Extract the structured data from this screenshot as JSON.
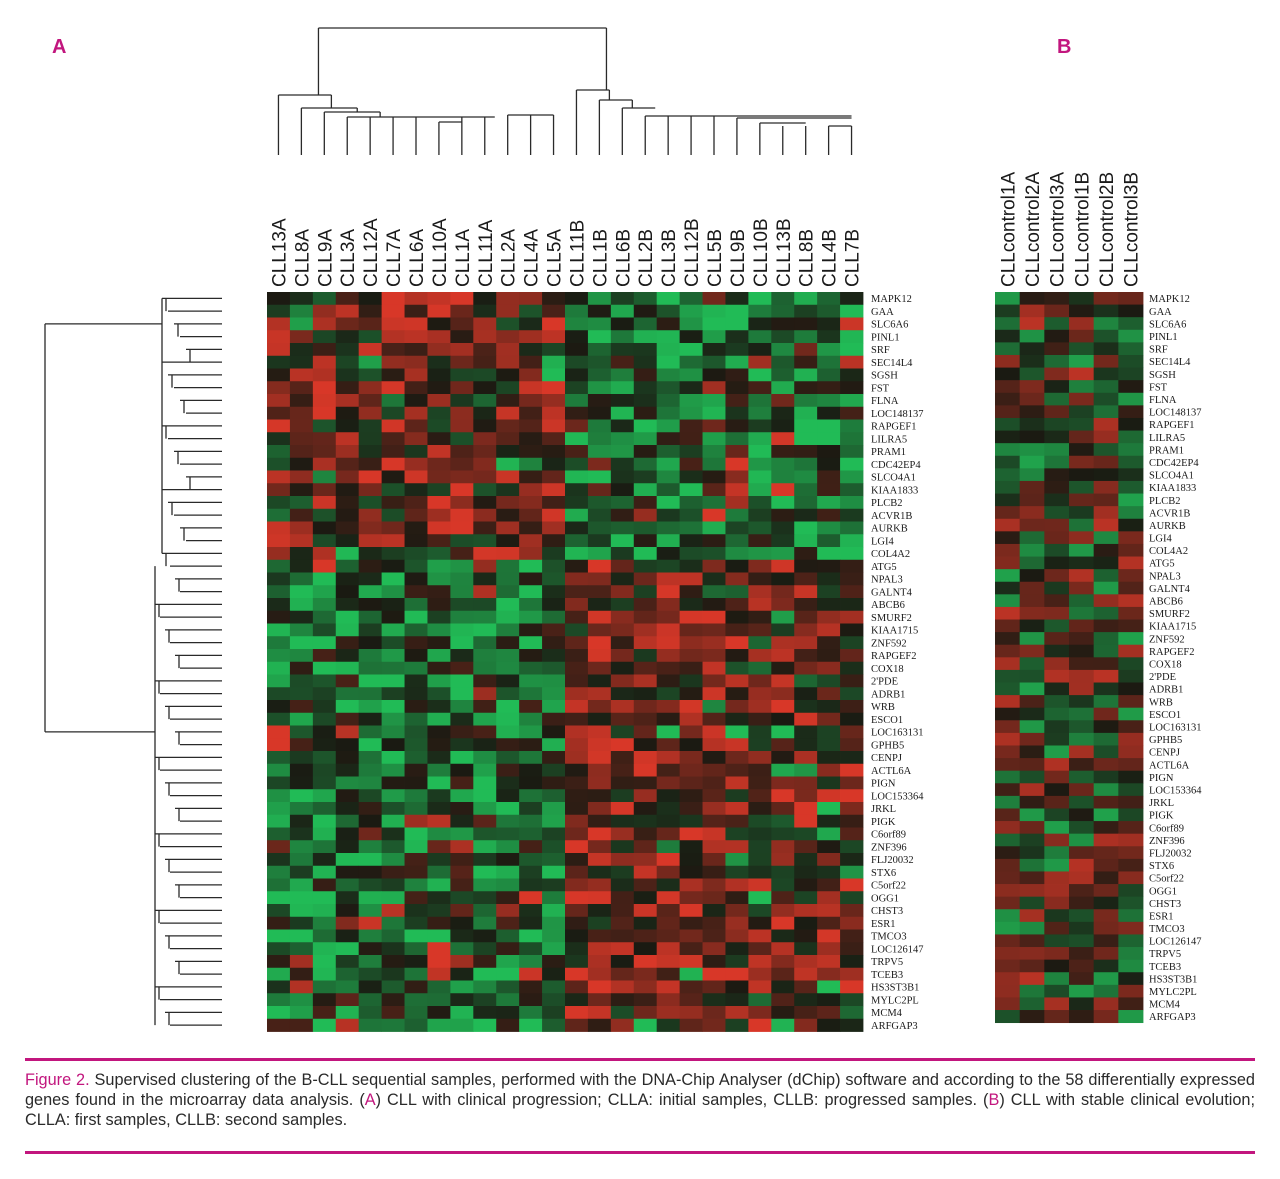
{
  "panels": {
    "a_label": "A",
    "b_label": "B"
  },
  "caption": {
    "figure_label": "Figure 2.",
    "part1": " Supervised clustering of the B-CLL sequential samples, performed with the DNA-Chip Analyser (dChip) software and according to the 58 differentially expressed genes found in the microarray data analysis. (",
    "a": "A",
    "part2": ") CLL with clinical progression; CLLA: initial samples, CLLB: progressed samples. (",
    "b": "B",
    "part3": ") CLL with stable clinical evolution; CLLA: first samples, CLLB: second samples."
  },
  "colors": {
    "accent": "#c2167e",
    "high": "#e83a2a",
    "low": "#22c95c",
    "mid": "#1a1a12"
  },
  "chart_data": [
    {
      "type": "heatmap",
      "panel": "A",
      "columns": [
        "CLL13A",
        "CLL8A",
        "CLL9A",
        "CLL3A",
        "CLL12A",
        "CLL7A",
        "CLL6A",
        "CLL10A",
        "CLL1A",
        "CLL11A",
        "CLL2A",
        "CLL4A",
        "CLL5A",
        "CLL11B",
        "CLL1B",
        "CLL6B",
        "CLL2B",
        "CLL3B",
        "CLL12B",
        "CLL5B",
        "CLL9B",
        "CLL10B",
        "CLL13B",
        "CLL8B",
        "CLL4B",
        "CLL7B"
      ],
      "rows": [
        "MAPK12",
        "GAA",
        "SLC6A6",
        "PINL1",
        "SRF",
        "SEC14L4",
        "SGSH",
        "FST",
        "FLNA",
        "LOC148137",
        "RAPGEF1",
        "LILRA5",
        "PRAM1",
        "CDC42EP4",
        "SLCO4A1",
        "KIAA1833",
        "PLCB2",
        "ACVR1B",
        "AURKB",
        "LGI4",
        "COL4A2",
        "ATG5",
        "NPAL3",
        "GALNT4",
        "ABCB6",
        "SMURF2",
        "KIAA1715",
        "ZNF592",
        "RAPGEF2",
        "COX18",
        "2'PDE",
        "ADRB1",
        "WRB",
        "ESCO1",
        "LOC163131",
        "GPHB5",
        "CENPJ",
        "ACTL6A",
        "PIGN",
        "LOC153364",
        "JRKL",
        "PIGK",
        "C6orf89",
        "ZNF396",
        "FLJ20032",
        "STX6",
        "C5orf22",
        "OGG1",
        "CHST3",
        "ESR1",
        "TMCO3",
        "LOC126147",
        "TRPV5",
        "TCEB3",
        "HS3ST3B1",
        "MYLC2PL",
        "MCM4",
        "ARFGAP3"
      ],
      "dendrogram_top": true,
      "dendrogram_left": true,
      "color_scale": [
        "green (low)",
        "black",
        "red (high)"
      ]
    },
    {
      "type": "heatmap",
      "panel": "B",
      "columns": [
        "CLLcontrol1A",
        "CLLcontrol2A",
        "CLLcontrol3A",
        "CLLcontrol1B",
        "CLLcontrol2B",
        "CLLcontrol3B"
      ],
      "rows": [
        "MAPK12",
        "GAA",
        "SLC6A6",
        "PINL1",
        "SRF",
        "SEC14L4",
        "SGSH",
        "FST",
        "FLNA",
        "LOC148137",
        "RAPGEF1",
        "LILRA5",
        "PRAM1",
        "CDC42EP4",
        "SLCO4A1",
        "KIAA1833",
        "PLCB2",
        "ACVR1B",
        "AURKB",
        "LGI4",
        "COL4A2",
        "ATG5",
        "NPAL3",
        "GALNT4",
        "ABCB6",
        "SMURF2",
        "KIAA1715",
        "ZNF592",
        "RAPGEF2",
        "COX18",
        "2'PDE",
        "ADRB1",
        "WRB",
        "ESCO1",
        "LOC163131",
        "GPHB5",
        "CENPJ",
        "ACTL6A",
        "PIGN",
        "LOC153364",
        "JRKL",
        "PIGK",
        "C6orf89",
        "ZNF396",
        "FLJ20032",
        "STX6",
        "C5orf22",
        "OGG1",
        "CHST3",
        "ESR1",
        "TMCO3",
        "LOC126147",
        "TRPV5",
        "TCEB3",
        "HS3ST3B1",
        "MYLC2PL",
        "MCM4",
        "ARFGAP3"
      ],
      "dendrogram_top": false,
      "dendrogram_left": false,
      "color_scale": [
        "green (low)",
        "black",
        "red (high)"
      ]
    }
  ]
}
